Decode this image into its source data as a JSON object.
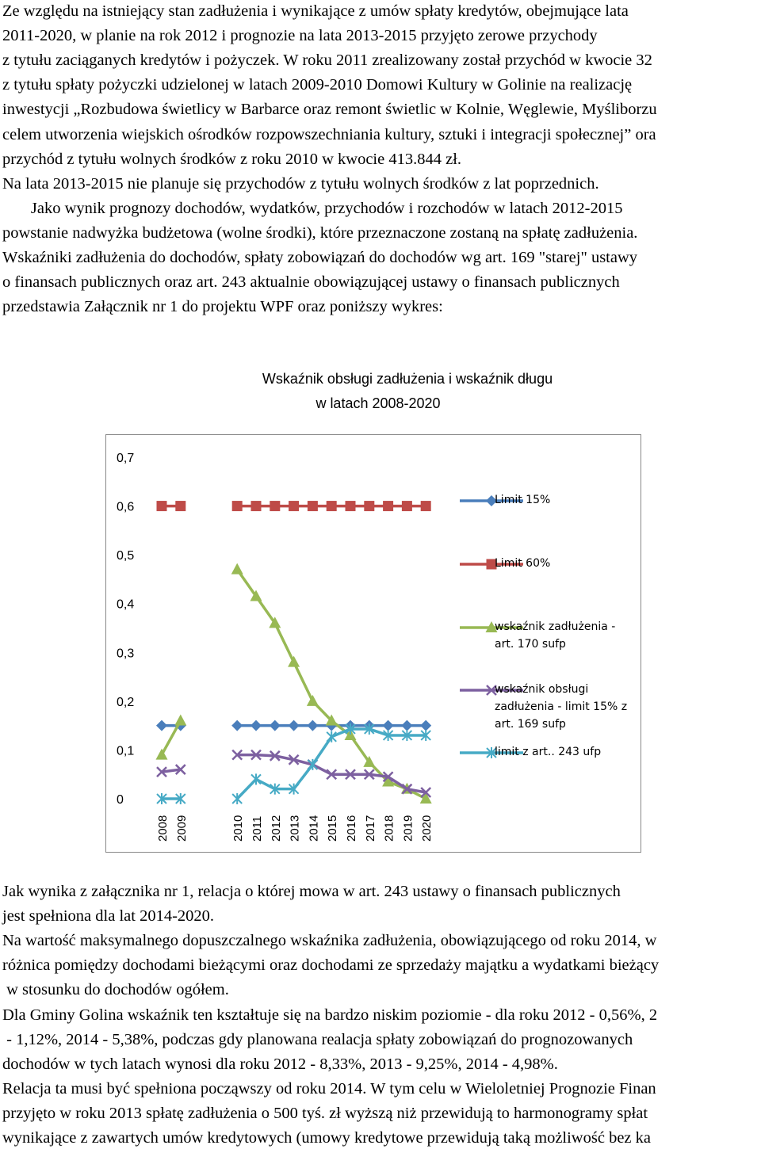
{
  "top_lines": [
    "Ze względu na istniejący stan zadłużenia i wynikające z umów spłaty kredytów, obejmujące lata",
    "2011-2020, w planie na rok 2012 i prognozie na lata 2013-2015 przyjęto zerowe przychody",
    "z tytułu zaciąganych kredytów i pożyczek. W roku 2011 zrealizowany został przychód w kwocie 32",
    "z tytułu spłaty pożyczki udzielonej w latach 2009-2010 Domowi Kultury w Golinie na realizację",
    "inwestycji „Rozbudowa świetlicy w Barbarce oraz remont świetlic w Kolnie, Węglewie, Myśliborzu",
    "celem utworzenia wiejskich ośrodków rozpowszechniania kultury, sztuki i integracji społecznej” ora",
    "przychód z tytułu wolnych środków z roku 2010 w kwocie 413.844 zł.",
    "Na lata 2013-2015 nie planuje się przychodów z tytułu wolnych środków z lat poprzednich.",
    "       Jako wynik prognozy dochodów, wydatków, przychodów i rozchodów w latach 2012-2015",
    "powstanie nadwyżka budżetowa (wolne środki), które przeznaczone zostaną na spłatę zadłużenia.",
    "Wskaźniki zadłużenia do dochodów, spłaty zobowiązań do dochodów wg art. 169 \"starej\" ustawy",
    "o finansach publicznych oraz art. 243 aktualnie obowiązującej ustawy o finansach publicznych",
    "przedstawia Załącznik nr 1 do projektu WPF oraz poniższy wykres:"
  ],
  "chart_data": {
    "type": "line",
    "title": [
      "Wskaźnik obsługi zadłużenia i wskaźnik długu",
      "w latach 2008-2020"
    ],
    "categories": [
      "2008",
      "2009",
      null,
      null,
      "2010",
      "2011",
      "2012",
      "2013",
      "2014",
      "2015",
      "2016",
      "2017",
      "2018",
      "2019",
      "2020"
    ],
    "ylim": [
      0,
      0.7
    ],
    "yticks": [
      0,
      {
        "value": 0.1,
        "label": "0,1"
      },
      {
        "value": 0.2,
        "label": "0,2"
      },
      {
        "value": 0.3,
        "label": "0,3"
      },
      {
        "value": 0.4,
        "label": "0,4"
      },
      {
        "value": 0.5,
        "label": "0,5"
      },
      {
        "value": 0.6,
        "label": "0,6"
      },
      {
        "value": 0.7,
        "label": "0,7"
      }
    ],
    "grid": false,
    "legend": "right",
    "series": [
      {
        "name": "Limit 15%",
        "color": "#4a7ebb",
        "marker": "diamond",
        "values": [
          0.15,
          0.15,
          null,
          null,
          0.15,
          0.15,
          0.15,
          0.15,
          0.15,
          0.15,
          0.15,
          0.15,
          0.15,
          0.15,
          0.15
        ]
      },
      {
        "name": "Limit 60%",
        "color": "#be4b48",
        "marker": "square",
        "values": [
          0.6,
          0.6,
          null,
          null,
          0.6,
          0.6,
          0.6,
          0.6,
          0.6,
          0.6,
          0.6,
          0.6,
          0.6,
          0.6,
          0.6
        ]
      },
      {
        "name": "wskaźnik zadłużenia - art. 170 sufp",
        "color": "#98b954",
        "marker": "triangle",
        "values": [
          0.09,
          0.16,
          null,
          null,
          0.47,
          0.415,
          0.36,
          0.28,
          0.2,
          0.16,
          0.13,
          0.075,
          0.035,
          0.02,
          0
        ]
      },
      {
        "name": "wskaźnik obsługi zadłużenia - limit 15% z art. 169 sufp",
        "color": "#7d60a0",
        "marker": "x",
        "values": [
          0.055,
          0.06,
          null,
          null,
          0.09,
          0.09,
          0.088,
          0.08,
          0.07,
          0.05,
          0.05,
          0.05,
          0.045,
          0.02,
          0.013
        ]
      },
      {
        "name": "limit z art.. 243 ufp",
        "color": "#46aac5",
        "marker": "star",
        "values": [
          0,
          0,
          null,
          null,
          0,
          0.04,
          0.02,
          0.02,
          0.07,
          0.127,
          0.143,
          0.143,
          0.13,
          0.13,
          0.13
        ]
      }
    ]
  },
  "bottom_lines": [
    "Jak wynika z załącznika nr 1, relacja o której mowa w art. 243 ustawy o finansach publicznych",
    "jest spełniona dla lat 2014-2020.",
    "Na wartość maksymalnego dopuszczalnego wskaźnika zadłużenia, obowiązującego od roku 2014, w",
    "różnica pomiędzy dochodami bieżącymi oraz dochodami ze sprzedaży majątku a wydatkami bieżący",
    " w stosunku do dochodów ogółem.",
    "Dla Gminy Golina wskaźnik ten kształtuje się na bardzo niskim poziomie - dla roku 2012 - 0,56%, 2",
    " - 1,12%, 2014 - 5,38%, podczas gdy planowana realacja spłaty zobowiązań do prognozowanych",
    "dochodów w tych latach wynosi dla roku 2012 - 8,33%, 2013 - 9,25%, 2014 - 4,98%.",
    "Relacja ta musi być spełniona począwszy od roku 2014. W tym celu w Wieloletniej Prognozie Finan",
    "przyjęto w roku 2013 spłatę zadłużenia o 500 tyś. zł wyższą niż przewidują to harmonogramy spłat",
    "wynikające z zawartych umów kredytowych (umowy kredytowe przewidują taką możliwość bez ka"
  ]
}
